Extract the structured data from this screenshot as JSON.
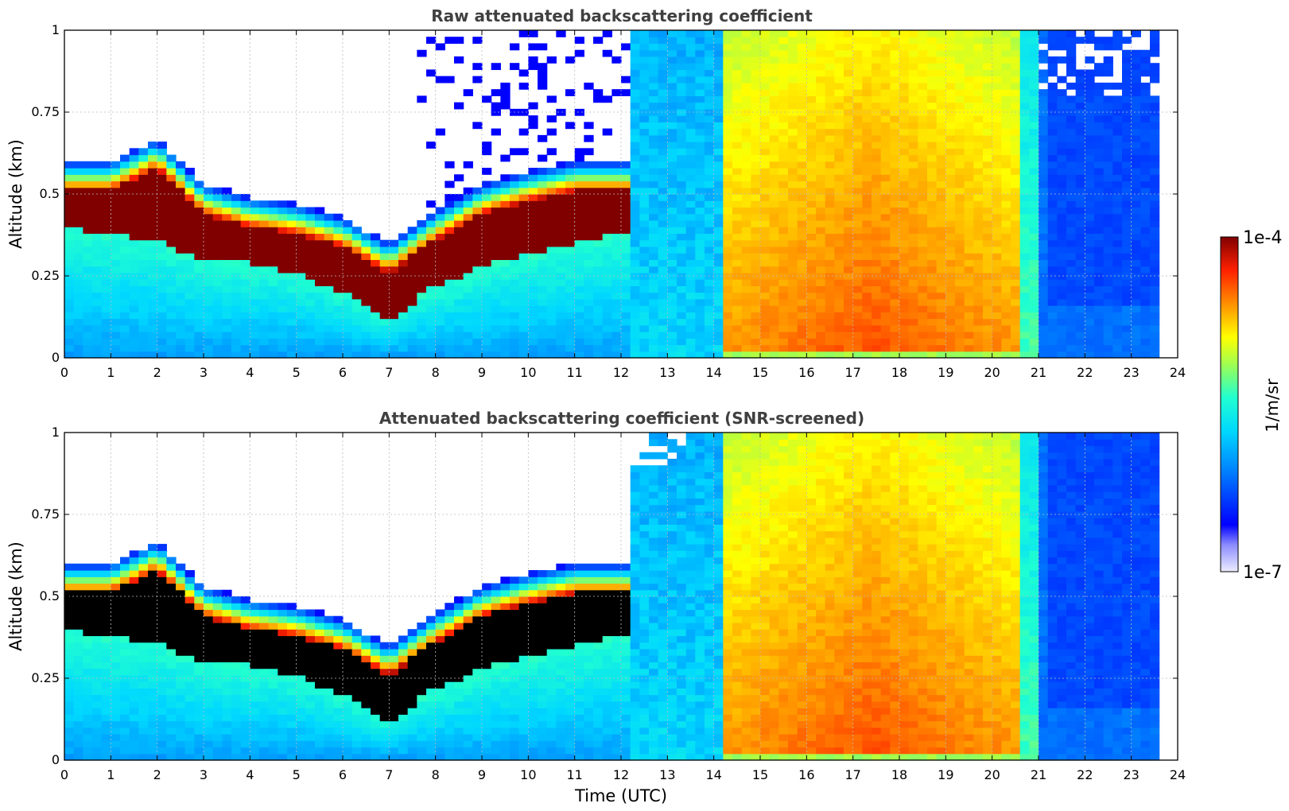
{
  "chart_data": [
    {
      "type": "heatmap",
      "title": "Raw attenuated backscattering coefficient",
      "xlabel": "",
      "ylabel": "Altitude (km)",
      "xlim": [
        0,
        24
      ],
      "ylim": [
        0,
        1
      ],
      "xticks": [
        "0",
        "1",
        "2",
        "3",
        "4",
        "5",
        "6",
        "7",
        "8",
        "9",
        "10",
        "11",
        "12",
        "13",
        "14",
        "15",
        "16",
        "17",
        "18",
        "19",
        "20",
        "21",
        "22",
        "23",
        "24"
      ],
      "yticks": [
        "0",
        "0.25",
        "0.5",
        "0.75",
        "1"
      ],
      "grid": true,
      "screened": false,
      "cloud_base_km_by_hour": [
        [
          0,
          0.4
        ],
        [
          1,
          0.38
        ],
        [
          2,
          0.36
        ],
        [
          3,
          0.3
        ],
        [
          4,
          0.29
        ],
        [
          5,
          0.26
        ],
        [
          6,
          0.2
        ],
        [
          7,
          0.12
        ],
        [
          8,
          0.22
        ],
        [
          9,
          0.28
        ],
        [
          10,
          0.32
        ],
        [
          11,
          0.35
        ],
        [
          12,
          0.38
        ]
      ],
      "cloud_top_km_by_hour": [
        [
          0,
          0.55
        ],
        [
          1,
          0.55
        ],
        [
          2,
          0.62
        ],
        [
          3,
          0.48
        ],
        [
          4,
          0.44
        ],
        [
          5,
          0.42
        ],
        [
          6,
          0.38
        ],
        [
          7,
          0.3
        ],
        [
          8,
          0.4
        ],
        [
          9,
          0.48
        ],
        [
          10,
          0.52
        ],
        [
          11,
          0.55
        ],
        [
          12,
          0.55
        ]
      ],
      "fog_period_utc": [
        14.3,
        20.5
      ],
      "colorbar": {
        "label": "1/m/sr",
        "min": "1e-7",
        "max": "1e-4",
        "scale": "log"
      }
    },
    {
      "type": "heatmap",
      "title": "Attenuated backscattering coefficient (SNR-screened)",
      "xlabel": "Time (UTC)",
      "ylabel": "Altitude (km)",
      "xlim": [
        0,
        24
      ],
      "ylim": [
        0,
        1
      ],
      "xticks": [
        "0",
        "1",
        "2",
        "3",
        "4",
        "5",
        "6",
        "7",
        "8",
        "9",
        "10",
        "11",
        "12",
        "13",
        "14",
        "15",
        "16",
        "17",
        "18",
        "19",
        "20",
        "21",
        "22",
        "23",
        "24"
      ],
      "yticks": [
        "0",
        "0.25",
        "0.5",
        "0.75",
        "1"
      ],
      "grid": true,
      "screened": true,
      "cloud_base_km_by_hour": [
        [
          0,
          0.4
        ],
        [
          1,
          0.38
        ],
        [
          2,
          0.36
        ],
        [
          3,
          0.3
        ],
        [
          4,
          0.29
        ],
        [
          5,
          0.26
        ],
        [
          6,
          0.2
        ],
        [
          7,
          0.12
        ],
        [
          8,
          0.22
        ],
        [
          9,
          0.28
        ],
        [
          10,
          0.32
        ],
        [
          11,
          0.35
        ],
        [
          12,
          0.38
        ]
      ],
      "cloud_top_km_by_hour": [
        [
          0,
          0.55
        ],
        [
          1,
          0.55
        ],
        [
          2,
          0.62
        ],
        [
          3,
          0.48
        ],
        [
          4,
          0.44
        ],
        [
          5,
          0.42
        ],
        [
          6,
          0.38
        ],
        [
          7,
          0.3
        ],
        [
          8,
          0.4
        ],
        [
          9,
          0.48
        ],
        [
          10,
          0.52
        ],
        [
          11,
          0.55
        ],
        [
          12,
          0.55
        ]
      ],
      "fog_period_utc": [
        14.3,
        20.5
      ],
      "colorbar": {
        "label": "1/m/sr",
        "min": "1e-7",
        "max": "1e-4",
        "scale": "log"
      }
    }
  ],
  "colorbar": {
    "label": "1/m/sr",
    "max_label": "1e-4",
    "min_label": "1e-7"
  }
}
